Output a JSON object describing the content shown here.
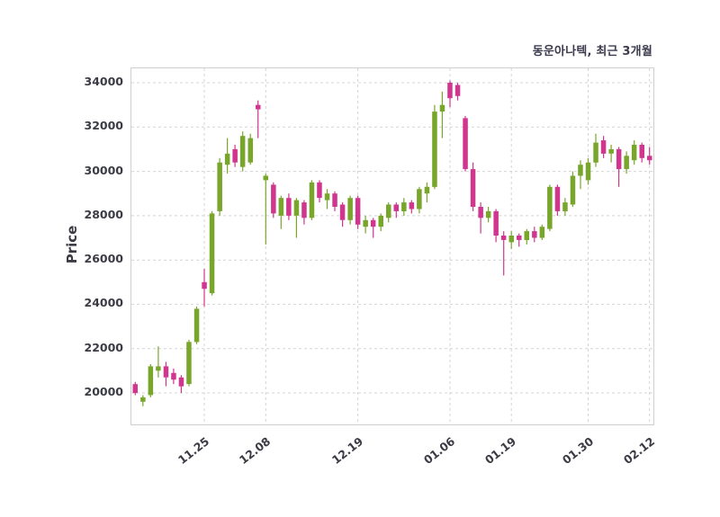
{
  "chart_data": {
    "type": "candlestick",
    "title": "동운아나텍, 최근 3개월",
    "ylabel": "Price",
    "ylim": [
      18580,
      34650
    ],
    "yticks": [
      20000,
      22000,
      24000,
      26000,
      28000,
      30000,
      32000,
      34000
    ],
    "xticks": [
      {
        "index": 9,
        "label": "11.25"
      },
      {
        "index": 17,
        "label": "12.08"
      },
      {
        "index": 29,
        "label": "12.19"
      },
      {
        "index": 41,
        "label": "01.06"
      },
      {
        "index": 49,
        "label": "01.19"
      },
      {
        "index": 59,
        "label": "01.30"
      },
      {
        "index": 67,
        "label": "02.12"
      }
    ],
    "columns": [
      "open",
      "high",
      "low",
      "close"
    ],
    "candles": [
      [
        20400,
        20500,
        19900,
        20000
      ],
      [
        19600,
        19900,
        19400,
        19800
      ],
      [
        19900,
        21300,
        19800,
        21200
      ],
      [
        21000,
        22100,
        20700,
        21200
      ],
      [
        21200,
        21400,
        20300,
        20700
      ],
      [
        20900,
        21100,
        20400,
        20600
      ],
      [
        20700,
        20800,
        20000,
        20300
      ],
      [
        20400,
        22400,
        20300,
        22300
      ],
      [
        22300,
        23900,
        22200,
        23800
      ],
      [
        25000,
        25600,
        23900,
        24700
      ],
      [
        24500,
        28200,
        24400,
        28100
      ],
      [
        28200,
        30600,
        28000,
        30400
      ],
      [
        30300,
        31500,
        29900,
        30800
      ],
      [
        31000,
        31200,
        30200,
        30400
      ],
      [
        30200,
        31800,
        30000,
        31600
      ],
      [
        30400,
        31700,
        30300,
        31500
      ],
      [
        33000,
        33200,
        31500,
        32800
      ],
      [
        29600,
        29900,
        26700,
        29800
      ],
      [
        29400,
        29500,
        27900,
        28100
      ],
      [
        28000,
        28900,
        27400,
        28800
      ],
      [
        28800,
        29000,
        27800,
        28000
      ],
      [
        28000,
        28800,
        27000,
        28700
      ],
      [
        28600,
        28700,
        27600,
        27900
      ],
      [
        27900,
        29600,
        27800,
        29500
      ],
      [
        29500,
        29600,
        28600,
        28800
      ],
      [
        28700,
        29200,
        28300,
        29000
      ],
      [
        29000,
        29100,
        28200,
        28400
      ],
      [
        28500,
        28600,
        27500,
        27800
      ],
      [
        27800,
        28900,
        27600,
        28800
      ],
      [
        28800,
        28900,
        27400,
        27600
      ],
      [
        27500,
        28000,
        27200,
        27800
      ],
      [
        27800,
        27900,
        27000,
        27500
      ],
      [
        27500,
        28100,
        27300,
        28000
      ],
      [
        27900,
        28600,
        27700,
        28500
      ],
      [
        28500,
        28600,
        27900,
        28200
      ],
      [
        28200,
        28800,
        28000,
        28600
      ],
      [
        28600,
        28700,
        28100,
        28300
      ],
      [
        28300,
        29300,
        28100,
        29200
      ],
      [
        29000,
        29500,
        28600,
        29300
      ],
      [
        29300,
        33000,
        29200,
        32700
      ],
      [
        32700,
        33600,
        31500,
        33000
      ],
      [
        34000,
        34100,
        32900,
        33300
      ],
      [
        33900,
        34000,
        33200,
        33400
      ],
      [
        32400,
        32500,
        30000,
        30100
      ],
      [
        30100,
        30400,
        28200,
        28400
      ],
      [
        28400,
        28600,
        27200,
        27900
      ],
      [
        27900,
        28400,
        27700,
        28200
      ],
      [
        28200,
        28300,
        26800,
        27100
      ],
      [
        27100,
        27300,
        25300,
        26900
      ],
      [
        26800,
        27300,
        26500,
        27100
      ],
      [
        27100,
        27200,
        26600,
        26900
      ],
      [
        26900,
        27400,
        26700,
        27300
      ],
      [
        27300,
        27500,
        26800,
        27000
      ],
      [
        27000,
        27600,
        26900,
        27500
      ],
      [
        27400,
        29400,
        27300,
        29300
      ],
      [
        29300,
        29400,
        28000,
        28200
      ],
      [
        28200,
        28800,
        28000,
        28600
      ],
      [
        28500,
        30000,
        28400,
        29800
      ],
      [
        29800,
        30500,
        29200,
        30300
      ],
      [
        29600,
        30600,
        29400,
        30400
      ],
      [
        30400,
        31700,
        30200,
        31300
      ],
      [
        31400,
        31600,
        30600,
        30800
      ],
      [
        30800,
        31200,
        30400,
        31000
      ],
      [
        31000,
        31100,
        29300,
        30100
      ],
      [
        30100,
        30900,
        29900,
        30700
      ],
      [
        30500,
        31400,
        30300,
        31200
      ],
      [
        31200,
        31300,
        30400,
        30600
      ],
      [
        30700,
        31100,
        30300,
        30500
      ]
    ],
    "colors": {
      "up": "#78a62b",
      "down": "#d0368e",
      "grid": "#d4d4d4",
      "text": "#3b3b45"
    },
    "grid": "dashed",
    "legend": "none"
  }
}
